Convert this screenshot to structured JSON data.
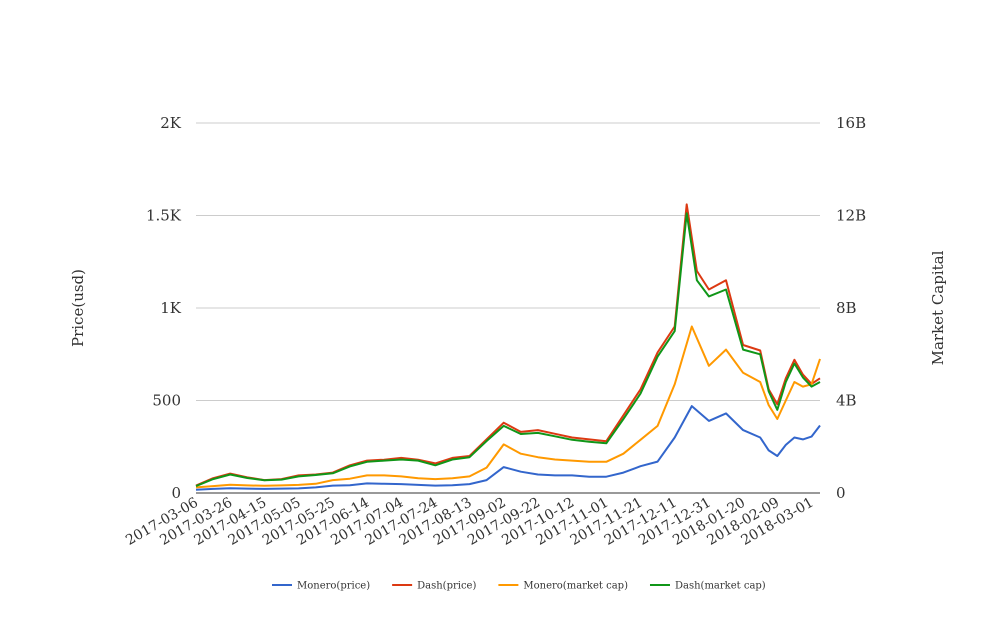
{
  "chart_data": {
    "type": "line",
    "title": "",
    "ylabel_left": "Price(usd)",
    "ylabel_right": "Market Capital",
    "ylim_left": [
      0,
      2000
    ],
    "ylim_right": [
      0,
      16000000000
    ],
    "y_ticks_left": [
      {
        "value": 0,
        "label": "0"
      },
      {
        "value": 500,
        "label": "500"
      },
      {
        "value": 1000,
        "label": "1K"
      },
      {
        "value": 1500,
        "label": "1.5K"
      },
      {
        "value": 2000,
        "label": "2K"
      }
    ],
    "y_ticks_right": [
      {
        "value": 0,
        "label": "0"
      },
      {
        "value": 4000000000,
        "label": "4B"
      },
      {
        "value": 8000000000,
        "label": "8B"
      },
      {
        "value": 12000000000,
        "label": "12B"
      },
      {
        "value": 16000000000,
        "label": "16B"
      }
    ],
    "x_range": [
      "2017-03-06",
      "2018-03-06"
    ],
    "x_ticks": [
      "2017-03-06",
      "2017-03-26",
      "2017-04-15",
      "2017-05-05",
      "2017-05-25",
      "2017-06-14",
      "2017-07-04",
      "2017-07-24",
      "2017-08-13",
      "2017-09-02",
      "2017-09-22",
      "2017-10-12",
      "2017-11-01",
      "2017-11-21",
      "2017-12-11",
      "2017-12-31",
      "2018-01-20",
      "2018-02-09",
      "2018-03-01"
    ],
    "grid": true,
    "legend_position": "bottom",
    "series": [
      {
        "name": "Monero(price)",
        "axis": "left",
        "color": "#3366cc",
        "points": [
          [
            "2017-03-06",
            18
          ],
          [
            "2017-03-16",
            22
          ],
          [
            "2017-03-26",
            26
          ],
          [
            "2017-04-05",
            24
          ],
          [
            "2017-04-15",
            22
          ],
          [
            "2017-04-25",
            24
          ],
          [
            "2017-05-05",
            25
          ],
          [
            "2017-05-15",
            30
          ],
          [
            "2017-05-25",
            40
          ],
          [
            "2017-06-04",
            42
          ],
          [
            "2017-06-14",
            52
          ],
          [
            "2017-06-24",
            50
          ],
          [
            "2017-07-04",
            48
          ],
          [
            "2017-07-14",
            44
          ],
          [
            "2017-07-24",
            40
          ],
          [
            "2017-08-03",
            42
          ],
          [
            "2017-08-13",
            48
          ],
          [
            "2017-08-23",
            70
          ],
          [
            "2017-09-02",
            140
          ],
          [
            "2017-09-12",
            115
          ],
          [
            "2017-09-22",
            100
          ],
          [
            "2017-10-02",
            95
          ],
          [
            "2017-10-12",
            95
          ],
          [
            "2017-10-22",
            88
          ],
          [
            "2017-11-01",
            88
          ],
          [
            "2017-11-11",
            110
          ],
          [
            "2017-11-21",
            145
          ],
          [
            "2017-12-01",
            170
          ],
          [
            "2017-12-11",
            300
          ],
          [
            "2017-12-21",
            470
          ],
          [
            "2017-12-31",
            390
          ],
          [
            "2018-01-10",
            430
          ],
          [
            "2018-01-20",
            340
          ],
          [
            "2018-01-30",
            300
          ],
          [
            "2018-02-04",
            230
          ],
          [
            "2018-02-09",
            200
          ],
          [
            "2018-02-14",
            260
          ],
          [
            "2018-02-19",
            300
          ],
          [
            "2018-02-24",
            290
          ],
          [
            "2018-03-01",
            305
          ],
          [
            "2018-03-06",
            365
          ]
        ]
      },
      {
        "name": "Dash(price)",
        "axis": "left",
        "color": "#dc3912",
        "points": [
          [
            "2017-03-06",
            40
          ],
          [
            "2017-03-16",
            80
          ],
          [
            "2017-03-26",
            105
          ],
          [
            "2017-04-05",
            85
          ],
          [
            "2017-04-15",
            70
          ],
          [
            "2017-04-25",
            75
          ],
          [
            "2017-05-05",
            95
          ],
          [
            "2017-05-15",
            100
          ],
          [
            "2017-05-25",
            110
          ],
          [
            "2017-06-04",
            150
          ],
          [
            "2017-06-14",
            175
          ],
          [
            "2017-06-24",
            180
          ],
          [
            "2017-07-04",
            190
          ],
          [
            "2017-07-14",
            180
          ],
          [
            "2017-07-24",
            160
          ],
          [
            "2017-08-03",
            190
          ],
          [
            "2017-08-13",
            200
          ],
          [
            "2017-08-23",
            290
          ],
          [
            "2017-09-02",
            380
          ],
          [
            "2017-09-12",
            330
          ],
          [
            "2017-09-22",
            340
          ],
          [
            "2017-10-02",
            320
          ],
          [
            "2017-10-12",
            300
          ],
          [
            "2017-10-22",
            290
          ],
          [
            "2017-11-01",
            280
          ],
          [
            "2017-11-11",
            420
          ],
          [
            "2017-11-21",
            560
          ],
          [
            "2017-12-01",
            760
          ],
          [
            "2017-12-11",
            900
          ],
          [
            "2017-12-18",
            1560
          ],
          [
            "2017-12-24",
            1200
          ],
          [
            "2017-12-31",
            1100
          ],
          [
            "2018-01-10",
            1150
          ],
          [
            "2018-01-20",
            800
          ],
          [
            "2018-01-30",
            770
          ],
          [
            "2018-02-04",
            560
          ],
          [
            "2018-02-09",
            480
          ],
          [
            "2018-02-14",
            620
          ],
          [
            "2018-02-19",
            720
          ],
          [
            "2018-02-24",
            640
          ],
          [
            "2018-03-01",
            590
          ],
          [
            "2018-03-06",
            620
          ]
        ]
      },
      {
        "name": "Monero(market cap)",
        "axis": "right",
        "color": "#ff9900",
        "points": [
          [
            "2017-03-06",
            240000000
          ],
          [
            "2017-03-16",
            300000000
          ],
          [
            "2017-03-26",
            360000000
          ],
          [
            "2017-04-05",
            330000000
          ],
          [
            "2017-04-15",
            310000000
          ],
          [
            "2017-04-25",
            330000000
          ],
          [
            "2017-05-05",
            350000000
          ],
          [
            "2017-05-15",
            400000000
          ],
          [
            "2017-05-25",
            560000000
          ],
          [
            "2017-06-04",
            620000000
          ],
          [
            "2017-06-14",
            760000000
          ],
          [
            "2017-06-24",
            760000000
          ],
          [
            "2017-07-04",
            720000000
          ],
          [
            "2017-07-14",
            640000000
          ],
          [
            "2017-07-24",
            600000000
          ],
          [
            "2017-08-03",
            640000000
          ],
          [
            "2017-08-13",
            720000000
          ],
          [
            "2017-08-23",
            1100000000
          ],
          [
            "2017-09-02",
            2100000000
          ],
          [
            "2017-09-12",
            1700000000
          ],
          [
            "2017-09-22",
            1550000000
          ],
          [
            "2017-10-02",
            1450000000
          ],
          [
            "2017-10-12",
            1400000000
          ],
          [
            "2017-10-22",
            1350000000
          ],
          [
            "2017-11-01",
            1350000000
          ],
          [
            "2017-11-11",
            1700000000
          ],
          [
            "2017-11-21",
            2300000000
          ],
          [
            "2017-12-01",
            2900000000
          ],
          [
            "2017-12-11",
            4700000000
          ],
          [
            "2017-12-21",
            7200000000
          ],
          [
            "2017-12-31",
            5500000000
          ],
          [
            "2018-01-10",
            6200000000
          ],
          [
            "2018-01-20",
            5200000000
          ],
          [
            "2018-01-30",
            4800000000
          ],
          [
            "2018-02-04",
            3800000000
          ],
          [
            "2018-02-09",
            3200000000
          ],
          [
            "2018-02-14",
            4000000000
          ],
          [
            "2018-02-19",
            4800000000
          ],
          [
            "2018-02-24",
            4600000000
          ],
          [
            "2018-03-01",
            4700000000
          ],
          [
            "2018-03-06",
            5800000000
          ]
        ]
      },
      {
        "name": "Dash(market cap)",
        "axis": "right",
        "color": "#109618",
        "points": [
          [
            "2017-03-06",
            300000000
          ],
          [
            "2017-03-16",
            600000000
          ],
          [
            "2017-03-26",
            800000000
          ],
          [
            "2017-04-05",
            650000000
          ],
          [
            "2017-04-15",
            550000000
          ],
          [
            "2017-04-25",
            580000000
          ],
          [
            "2017-05-05",
            720000000
          ],
          [
            "2017-05-15",
            780000000
          ],
          [
            "2017-05-25",
            850000000
          ],
          [
            "2017-06-04",
            1150000000
          ],
          [
            "2017-06-14",
            1350000000
          ],
          [
            "2017-06-24",
            1400000000
          ],
          [
            "2017-07-04",
            1450000000
          ],
          [
            "2017-07-14",
            1400000000
          ],
          [
            "2017-07-24",
            1200000000
          ],
          [
            "2017-08-03",
            1450000000
          ],
          [
            "2017-08-13",
            1550000000
          ],
          [
            "2017-08-23",
            2250000000
          ],
          [
            "2017-09-02",
            2900000000
          ],
          [
            "2017-09-12",
            2550000000
          ],
          [
            "2017-09-22",
            2600000000
          ],
          [
            "2017-10-02",
            2450000000
          ],
          [
            "2017-10-12",
            2300000000
          ],
          [
            "2017-10-22",
            2220000000
          ],
          [
            "2017-11-01",
            2150000000
          ],
          [
            "2017-11-11",
            3200000000
          ],
          [
            "2017-11-21",
            4300000000
          ],
          [
            "2017-12-01",
            5900000000
          ],
          [
            "2017-12-11",
            7000000000
          ],
          [
            "2017-12-18",
            12100000000
          ],
          [
            "2017-12-24",
            9200000000
          ],
          [
            "2017-12-31",
            8500000000
          ],
          [
            "2018-01-10",
            8800000000
          ],
          [
            "2018-01-20",
            6200000000
          ],
          [
            "2018-01-30",
            6000000000
          ],
          [
            "2018-02-04",
            4400000000
          ],
          [
            "2018-02-09",
            3600000000
          ],
          [
            "2018-02-14",
            4800000000
          ],
          [
            "2018-02-19",
            5600000000
          ],
          [
            "2018-02-24",
            5000000000
          ],
          [
            "2018-03-01",
            4600000000
          ],
          [
            "2018-03-06",
            4800000000
          ]
        ]
      }
    ]
  }
}
